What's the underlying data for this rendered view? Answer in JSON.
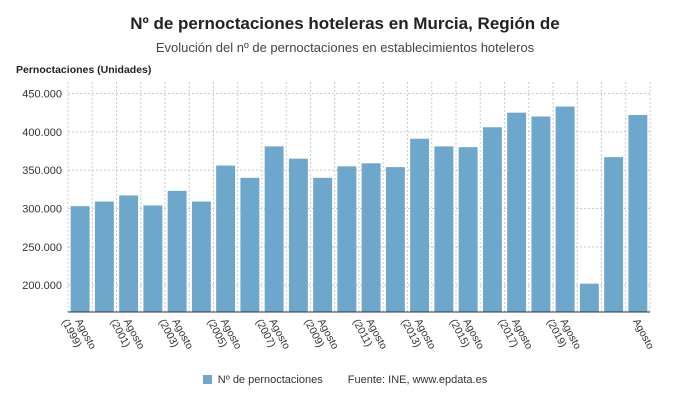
{
  "chart_data": {
    "type": "bar",
    "title": "Nº de pernoctaciones hoteleras en Murcia, Región de",
    "subtitle": "Evolución del nº de pernoctaciones en establecimientos hoteleros",
    "ylabel": "Pernoctaciones (Unidades)",
    "xlabel": "",
    "ylim": [
      165000,
      465000
    ],
    "yticks": [
      "200.000",
      "250.000",
      "300.000",
      "350.000",
      "400.000",
      "450.000"
    ],
    "ytick_values": [
      200000,
      250000,
      300000,
      350000,
      400000,
      450000
    ],
    "grid": true,
    "legend_position": "bottom",
    "bar_color": "#6ea7cc",
    "categories": [
      "Agosto (1999)",
      "",
      "Agosto (2001)",
      "",
      "Agosto (2003)",
      "",
      "Agosto (2005)",
      "",
      "Agosto (2007)",
      "",
      "Agosto (2009)",
      "",
      "Agosto (2011)",
      "",
      "Agosto (2013)",
      "",
      "Agosto (2015)",
      "",
      "Agosto (2017)",
      "",
      "Agosto (2019)",
      "",
      "",
      "Agosto"
    ],
    "series": [
      {
        "name": "Nº de pernoctaciones",
        "values": [
          303000,
          309000,
          317000,
          304000,
          323000,
          309000,
          356000,
          340000,
          381000,
          365000,
          340000,
          355000,
          359000,
          354000,
          391000,
          381000,
          380000,
          406000,
          425000,
          420000,
          433000,
          202000,
          367000,
          422000
        ]
      }
    ],
    "source": "Fuente: INE, www.epdata.es"
  }
}
